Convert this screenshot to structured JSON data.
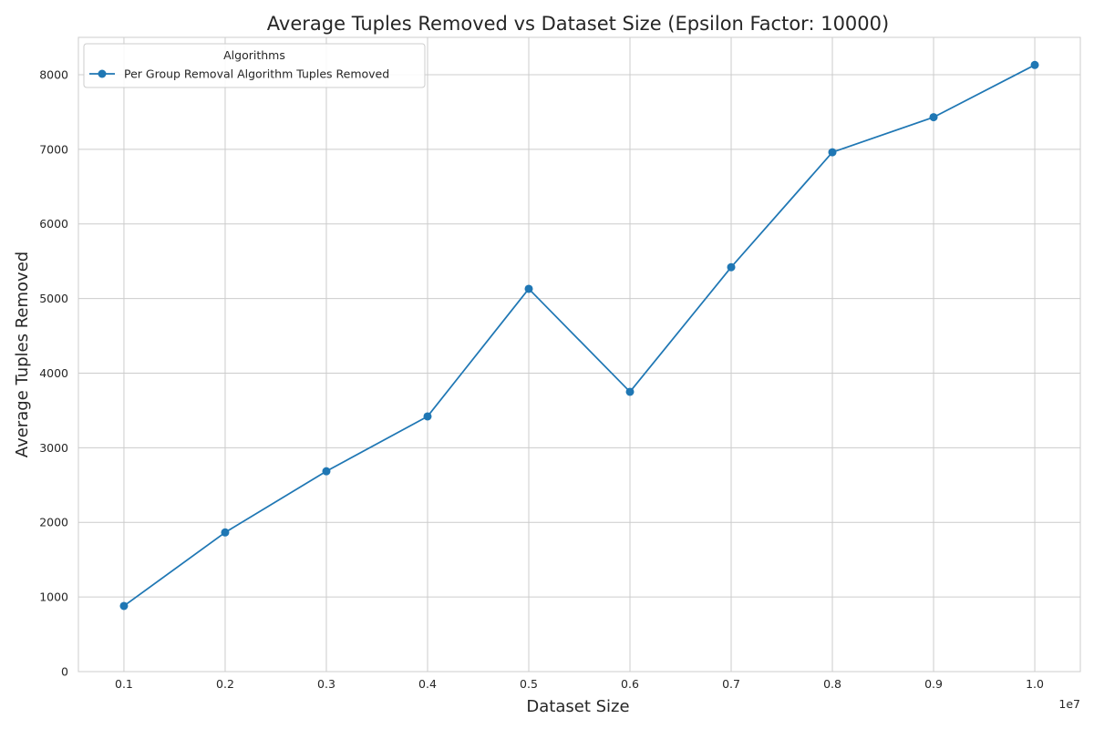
{
  "chart_data": {
    "type": "line",
    "title": "Average Tuples Removed vs Dataset Size (Epsilon Factor: 10000)",
    "xlabel": "Dataset Size",
    "ylabel": "Average Tuples Removed",
    "x_offset_label": "1e7",
    "xlim": [
      0.055,
      1.045
    ],
    "ylim": [
      0,
      8500
    ],
    "x_ticks": [
      0.1,
      0.2,
      0.3,
      0.4,
      0.5,
      0.6,
      0.7,
      0.8,
      0.9,
      1.0
    ],
    "x_tick_labels": [
      "0.1",
      "0.2",
      "0.3",
      "0.4",
      "0.5",
      "0.6",
      "0.7",
      "0.8",
      "0.9",
      "1.0"
    ],
    "y_ticks": [
      0,
      1000,
      2000,
      3000,
      4000,
      5000,
      6000,
      7000,
      8000
    ],
    "y_tick_labels": [
      "0",
      "1000",
      "2000",
      "3000",
      "4000",
      "5000",
      "6000",
      "7000",
      "8000"
    ],
    "grid": true,
    "legend": {
      "title": "Algorithms",
      "position": "top-left"
    },
    "series": [
      {
        "name": "Per Group Removal Algorithm Tuples Removed",
        "color": "#1f77b4",
        "marker": "circle",
        "x": [
          0.1,
          0.2,
          0.3,
          0.4,
          0.5,
          0.6,
          0.7,
          0.8,
          0.9,
          1.0
        ],
        "y": [
          880,
          1865,
          2685,
          3420,
          5130,
          3750,
          5420,
          6960,
          7430,
          8130
        ]
      }
    ]
  }
}
